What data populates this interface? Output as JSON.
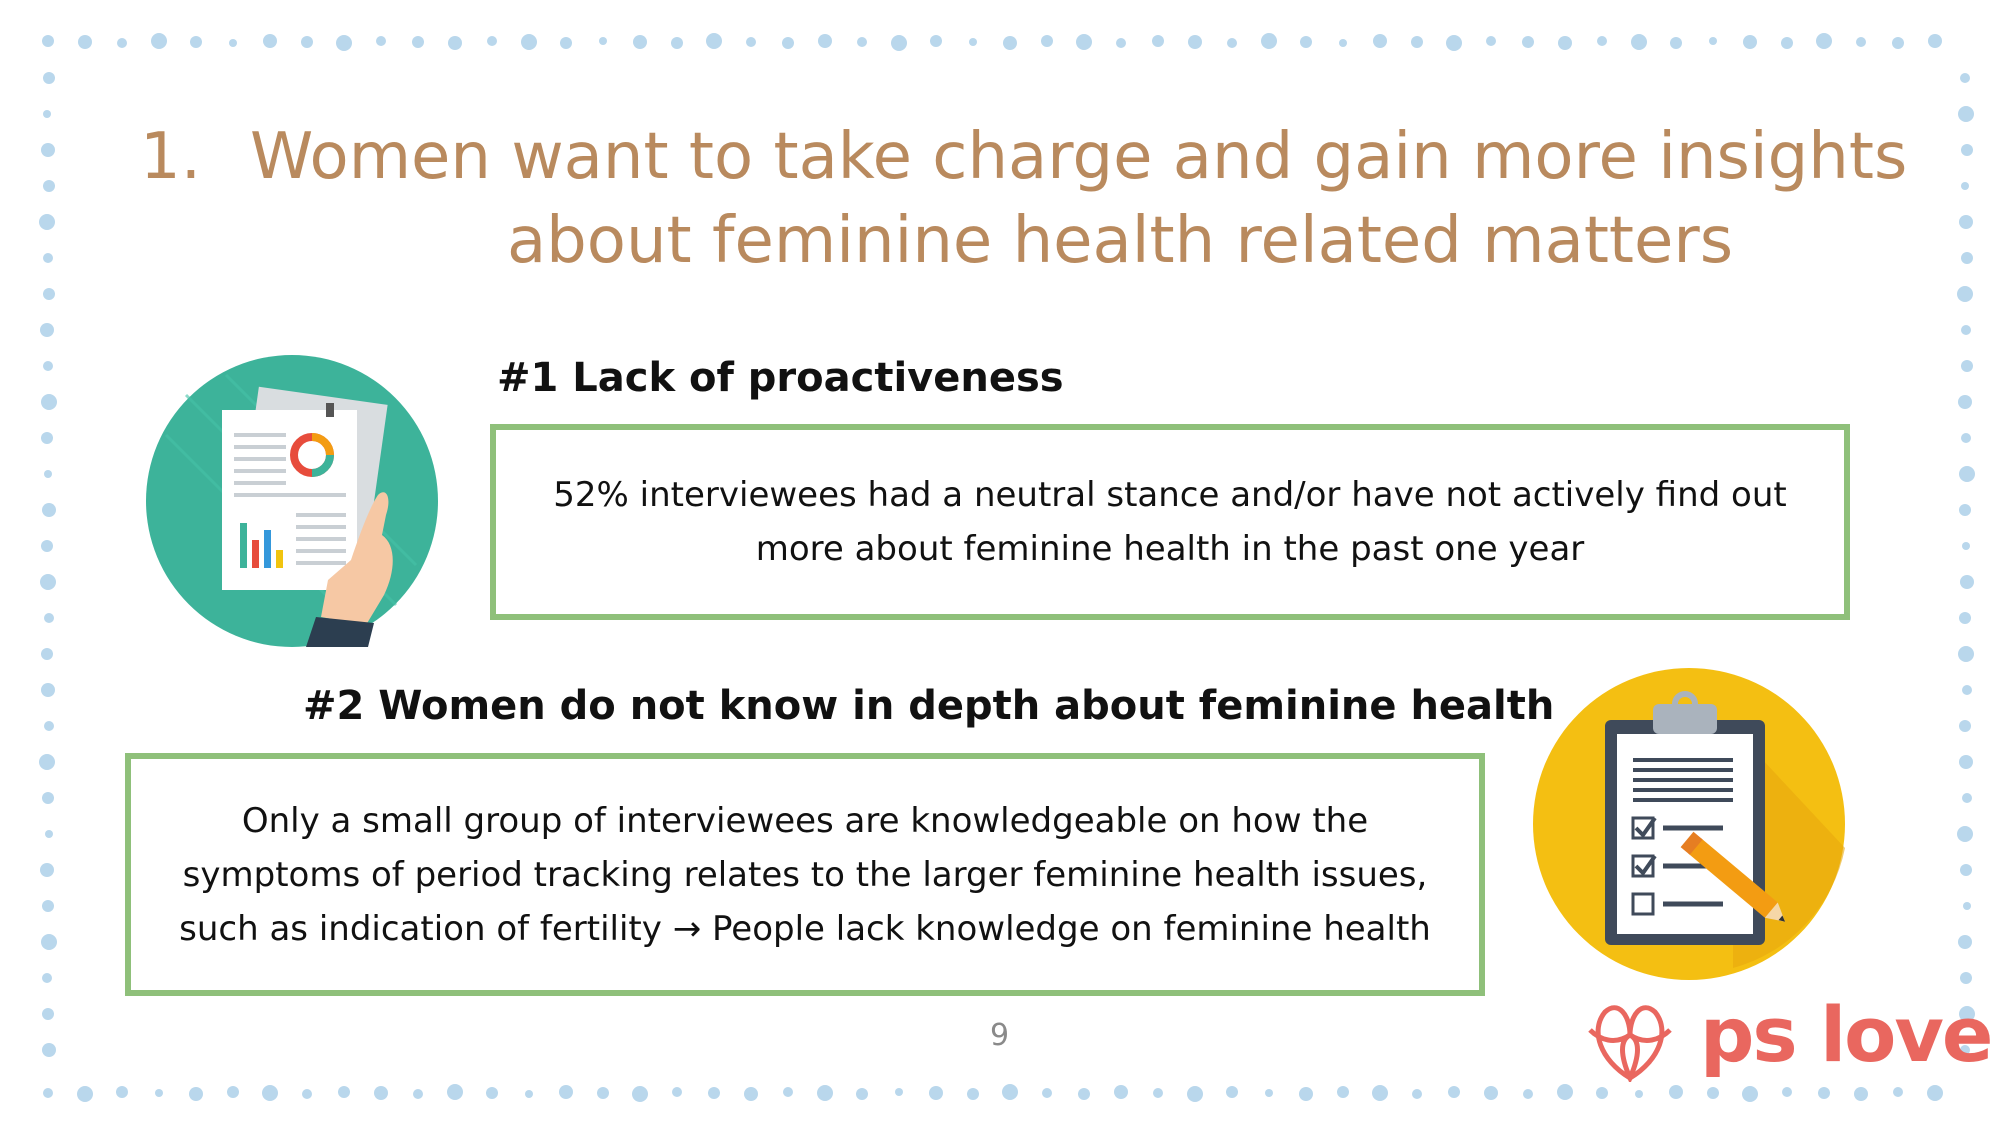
{
  "title": {
    "number": "1.",
    "line1": "Women want to take charge and gain more insights",
    "line2": "about feminine health related matters"
  },
  "point1": {
    "heading": "#1 Lack of proactiveness",
    "text": "52% interviewees had a neutral stance and/or have not actively find out more about feminine health in the past one year"
  },
  "point2": {
    "heading": "#2 Women do not know in depth about feminine health",
    "text": "Only a small group of interviewees are knowledgeable on how the symptoms of period tracking relates to the larger feminine health issues, such as indication of fertility → People lack knowledge on feminine health"
  },
  "page_number": "9",
  "logo": {
    "text": "ps love"
  },
  "colors": {
    "title": "#b98a5e",
    "box_border": "#8fc07a",
    "dots": "#b9d7ec",
    "logo": "#e9675f",
    "teal_circle": "#3db39a",
    "yellow_circle": "#f4bf12"
  },
  "icons": [
    "report-analysis-icon",
    "clipboard-checklist-icon",
    "ps-love-logo-icon"
  ]
}
